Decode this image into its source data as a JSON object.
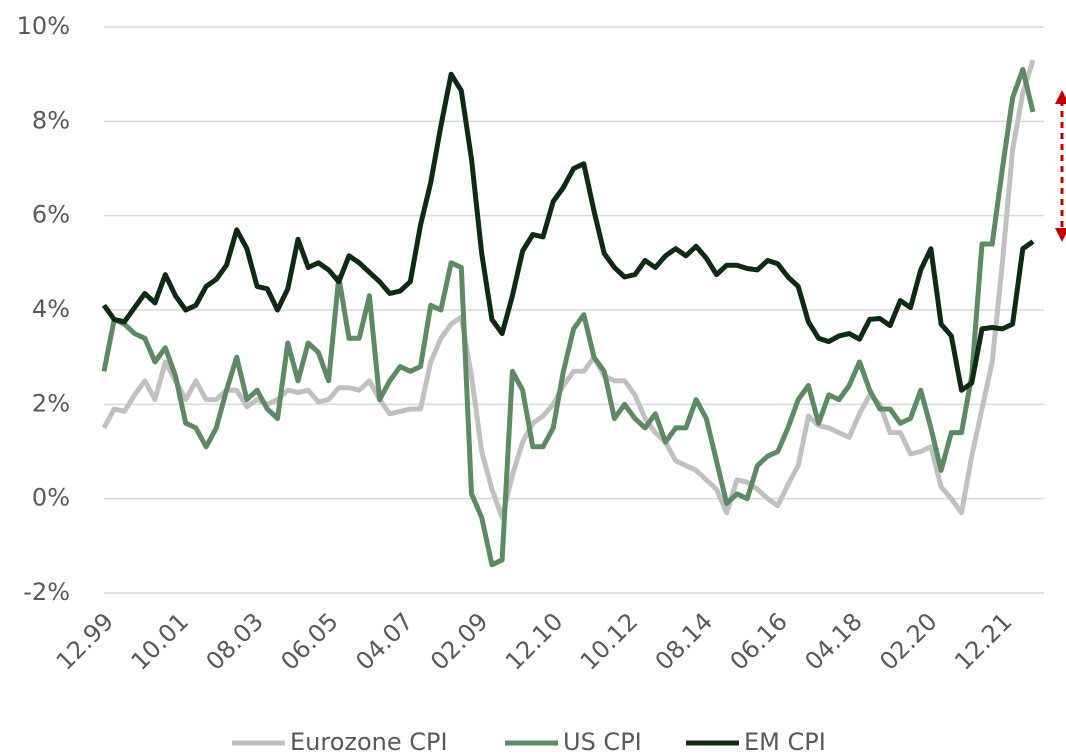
{
  "chart_data": {
    "type": "line",
    "x": [
      0,
      3,
      6,
      9,
      12,
      15,
      18,
      21,
      24,
      27,
      30,
      33,
      36,
      39,
      42,
      45,
      48,
      51,
      54,
      57,
      60,
      63,
      66,
      69,
      72,
      75,
      78,
      81,
      84,
      87,
      90,
      93,
      96,
      99,
      102,
      105,
      108,
      111,
      114,
      117,
      120,
      123,
      126,
      129,
      132,
      135,
      138,
      141,
      144,
      147,
      150,
      153,
      156,
      159,
      162,
      165,
      168,
      171,
      174,
      177,
      180,
      183,
      186,
      189,
      192,
      195,
      198,
      201,
      204,
      207,
      210,
      213,
      216,
      219,
      222,
      225,
      228,
      231,
      234,
      237,
      240,
      243,
      246,
      249,
      252,
      255,
      258,
      261,
      264,
      267,
      270,
      273
    ],
    "xlim": [
      0,
      273
    ],
    "xticks": [
      {
        "value": 0,
        "label": "12.99"
      },
      {
        "value": 22,
        "label": "10.01"
      },
      {
        "value": 44,
        "label": "08.03"
      },
      {
        "value": 66,
        "label": "06.05"
      },
      {
        "value": 88,
        "label": "04.07"
      },
      {
        "value": 110,
        "label": "02.09"
      },
      {
        "value": 132,
        "label": "12.10"
      },
      {
        "value": 154,
        "label": "10.12"
      },
      {
        "value": 176,
        "label": "08.14"
      },
      {
        "value": 198,
        "label": "06.16"
      },
      {
        "value": 220,
        "label": "04.18"
      },
      {
        "value": 242,
        "label": "02.20"
      },
      {
        "value": 264,
        "label": "12.21"
      }
    ],
    "ylim": [
      -2,
      10
    ],
    "yticks": [
      {
        "value": -2,
        "label": "-2%"
      },
      {
        "value": 0,
        "label": "0%"
      },
      {
        "value": 2,
        "label": "2%"
      },
      {
        "value": 4,
        "label": "4%"
      },
      {
        "value": 6,
        "label": "6%"
      },
      {
        "value": 8,
        "label": "8%"
      },
      {
        "value": 10,
        "label": "10%"
      }
    ],
    "grid": true,
    "legend": "bottom",
    "series": [
      {
        "name": "Eurozone CPI",
        "color": "#c0c0c0",
        "values": [
          1.5,
          1.9,
          1.85,
          2.2,
          2.5,
          2.1,
          2.9,
          2.5,
          2.1,
          2.5,
          2.1,
          2.1,
          2.3,
          2.3,
          1.95,
          2.1,
          2.0,
          2.1,
          2.3,
          2.25,
          2.3,
          2.05,
          2.1,
          2.35,
          2.35,
          2.3,
          2.5,
          2.1,
          1.8,
          1.85,
          1.9,
          1.9,
          2.9,
          3.4,
          3.7,
          3.85,
          2.6,
          1.0,
          0.2,
          -0.4,
          0.5,
          1.2,
          1.6,
          1.75,
          2.0,
          2.4,
          2.7,
          2.7,
          3.0,
          2.6,
          2.5,
          2.5,
          2.2,
          1.7,
          1.4,
          1.2,
          0.8,
          0.7,
          0.6,
          0.4,
          0.2,
          -0.3,
          0.4,
          0.35,
          0.2,
          0.0,
          -0.15,
          0.3,
          0.7,
          1.75,
          1.55,
          1.5,
          1.4,
          1.3,
          1.8,
          2.2,
          2.0,
          1.4,
          1.4,
          0.95,
          1.0,
          1.1,
          0.25,
          0.0,
          -0.3,
          0.9,
          1.9,
          2.9,
          5.0,
          7.4,
          8.6,
          9.3
        ]
      },
      {
        "name": "US CPI",
        "color": "#5b8a63",
        "values": [
          2.7,
          3.8,
          3.7,
          3.5,
          3.4,
          2.9,
          3.2,
          2.6,
          1.6,
          1.5,
          1.1,
          1.5,
          2.3,
          3.0,
          2.1,
          2.3,
          1.9,
          1.7,
          3.3,
          2.5,
          3.3,
          3.1,
          2.5,
          4.7,
          3.4,
          3.4,
          4.3,
          2.1,
          2.5,
          2.8,
          2.7,
          2.8,
          4.1,
          4.0,
          5.0,
          4.9,
          0.1,
          -0.4,
          -1.4,
          -1.3,
          2.7,
          2.3,
          1.1,
          1.1,
          1.5,
          2.7,
          3.6,
          3.9,
          3.0,
          2.7,
          1.7,
          2.0,
          1.7,
          1.5,
          1.8,
          1.2,
          1.5,
          1.5,
          2.1,
          1.7,
          0.8,
          -0.1,
          0.1,
          0.0,
          0.7,
          0.9,
          1.0,
          1.5,
          2.1,
          2.4,
          1.6,
          2.2,
          2.1,
          2.4,
          2.9,
          2.3,
          1.9,
          1.9,
          1.6,
          1.7,
          2.3,
          1.5,
          0.6,
          1.4,
          1.4,
          2.6,
          5.4,
          5.4,
          7.0,
          8.5,
          9.1,
          8.2
        ]
      },
      {
        "name": "EM CPI",
        "color": "#0d2b12",
        "values": [
          4.1,
          3.8,
          3.75,
          4.05,
          4.35,
          4.15,
          4.75,
          4.3,
          4.0,
          4.1,
          4.5,
          4.65,
          4.95,
          5.7,
          5.3,
          4.5,
          4.45,
          4.0,
          4.45,
          5.5,
          4.9,
          5.0,
          4.85,
          4.6,
          5.15,
          5.0,
          4.8,
          4.6,
          4.35,
          4.4,
          4.6,
          5.8,
          6.7,
          7.9,
          9.0,
          8.65,
          7.2,
          5.2,
          3.8,
          3.5,
          4.3,
          5.25,
          5.6,
          5.55,
          6.3,
          6.6,
          7.0,
          7.1,
          6.1,
          5.2,
          4.9,
          4.7,
          4.75,
          5.05,
          4.9,
          5.15,
          5.3,
          5.15,
          5.35,
          5.1,
          4.75,
          4.95,
          4.95,
          4.88,
          4.85,
          5.05,
          4.98,
          4.7,
          4.5,
          3.75,
          3.4,
          3.33,
          3.45,
          3.5,
          3.38,
          3.8,
          3.82,
          3.67,
          4.2,
          4.05,
          4.85,
          5.3,
          3.7,
          3.45,
          2.3,
          2.45,
          3.6,
          3.63,
          3.6,
          3.7,
          5.3,
          5.45
        ]
      }
    ]
  }
}
